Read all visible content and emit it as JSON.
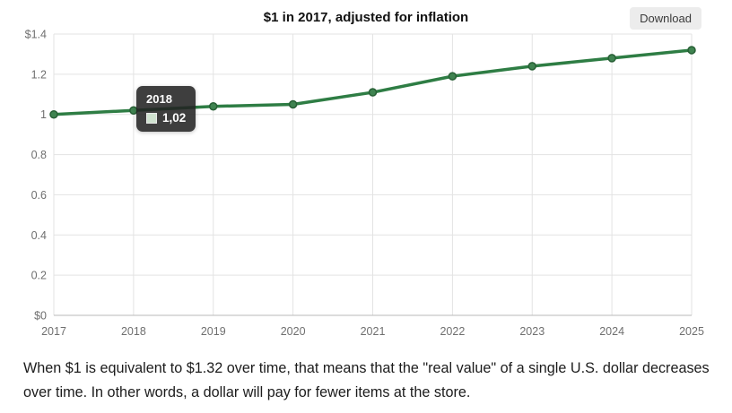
{
  "header": {
    "title": "$1 in 2017, adjusted for inflation",
    "download_label": "Download"
  },
  "chart_data": {
    "type": "line",
    "title": "$1 in 2017, adjusted for inflation",
    "x": [
      2017,
      2018,
      2019,
      2020,
      2021,
      2022,
      2023,
      2024,
      2025
    ],
    "values": [
      1.0,
      1.02,
      1.04,
      1.05,
      1.11,
      1.19,
      1.24,
      1.28,
      1.32
    ],
    "ylim": [
      0,
      1.4
    ],
    "y_ticks": [
      {
        "label": "$1.4",
        "value": 1.4
      },
      {
        "label": "1.2",
        "value": 1.2
      },
      {
        "label": "1",
        "value": 1.0
      },
      {
        "label": "0.8",
        "value": 0.8
      },
      {
        "label": "0.6",
        "value": 0.6
      },
      {
        "label": "0.4",
        "value": 0.4
      },
      {
        "label": "0.2",
        "value": 0.2
      },
      {
        "label": "$0",
        "value": 0
      }
    ],
    "grid": true,
    "legend_position": "none",
    "line_color": "#2e7d44",
    "marker_fill": "#3f8350",
    "marker_stroke": "#275f35",
    "grid_color": "#e3e3e3",
    "axis_line_color": "#b8b8b8",
    "label_color": "#6f6f6f"
  },
  "tooltip": {
    "year": "2018",
    "value": "1,02",
    "swatch_color": "#cfe2cf"
  },
  "footer": {
    "text": "When $1 is equivalent to $1.32 over time, that means that the \"real value\" of a single U.S. dollar decreases over time. In other words, a dollar will pay for fewer items at the store."
  }
}
